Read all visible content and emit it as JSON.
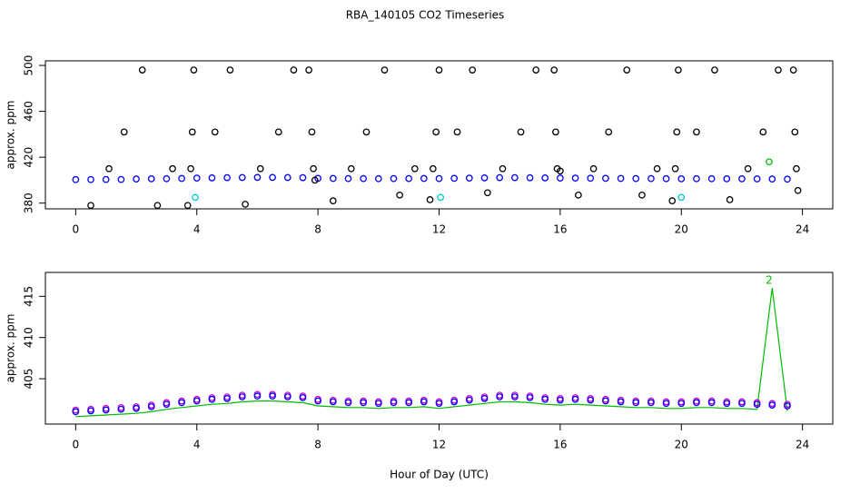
{
  "title": "RBA_140105  CO2 Timeseries",
  "chart_data": [
    {
      "type": "scatter",
      "y_label": "approx. ppm",
      "xlim": [
        -1,
        25
      ],
      "xticks": [
        0,
        4,
        8,
        12,
        16,
        20,
        24
      ],
      "ylim": [
        375,
        504
      ],
      "yticks": [
        380,
        420,
        460,
        500
      ],
      "series": [
        {
          "color": "#0000ff",
          "mode": "points",
          "x": [
            0,
            0.5,
            1,
            1.5,
            2,
            2.5,
            3,
            3.5,
            4,
            4.5,
            5,
            5.5,
            6,
            6.5,
            7,
            7.5,
            8,
            8.5,
            9,
            9.5,
            10,
            10.5,
            11,
            11.5,
            12,
            12.5,
            13,
            13.5,
            14,
            14.5,
            15,
            15.5,
            16,
            16.5,
            17,
            17.5,
            18,
            18.5,
            19,
            19.5,
            20,
            20.5,
            21,
            21.5,
            22,
            22.5,
            23,
            23.5
          ],
          "values": [
            400.5,
            400.5,
            400.6,
            400.6,
            401,
            401.2,
            401.3,
            401.5,
            401.8,
            402,
            402.2,
            402.3,
            402.4,
            402.4,
            402.3,
            402.2,
            401.6,
            401.5,
            401.4,
            401.4,
            401.3,
            401.4,
            401.4,
            401.5,
            401.4,
            401.6,
            401.8,
            402,
            402.2,
            402.2,
            402.1,
            402,
            401.8,
            401.8,
            401.7,
            401.6,
            401.5,
            401.4,
            401.4,
            401.3,
            401.2,
            401.3,
            401.3,
            401.2,
            401.2,
            401.1,
            401,
            400.9
          ]
        },
        {
          "color": "#000000",
          "mode": "points",
          "x": [
            0.5,
            1.1,
            1.6,
            2.2,
            2.7,
            3.2,
            3.7,
            3.8,
            3.85,
            3.9,
            4.6,
            5.1,
            5.6,
            6.1,
            6.7,
            7.2,
            7.7,
            7.8,
            7.85,
            7.9,
            8.5,
            9.1,
            9.6,
            10.2,
            10.7,
            11.2,
            11.7,
            11.8,
            11.9,
            12,
            12.6,
            13.1,
            13.6,
            14.1,
            14.7,
            15.2,
            15.8,
            15.85,
            15.9,
            16,
            16.6,
            17.1,
            17.6,
            18.2,
            18.7,
            19.2,
            19.7,
            19.8,
            19.85,
            19.9,
            20.5,
            21.1,
            21.6,
            22.2,
            22.7,
            23.2,
            23.7,
            23.75,
            23.8,
            23.85
          ],
          "values": [
            378,
            410,
            442,
            496,
            378,
            410,
            378,
            410,
            442,
            496,
            442,
            496,
            379,
            410,
            442,
            496,
            496,
            442,
            410,
            400,
            382,
            410,
            442,
            496,
            387,
            410,
            383,
            410,
            442,
            496,
            442,
            496,
            389,
            410,
            442,
            496,
            496,
            442,
            410,
            408,
            387,
            410,
            442,
            496,
            387,
            410,
            382,
            410,
            442,
            496,
            442,
            496,
            383,
            410,
            442,
            496,
            496,
            442,
            410,
            391
          ]
        },
        {
          "color": "#00cccc",
          "mode": "points",
          "x": [
            3.95,
            12.05,
            20
          ],
          "values": [
            385,
            385,
            385
          ]
        },
        {
          "color": "#00bb00",
          "mode": "points",
          "x": [
            22.9
          ],
          "values": [
            416
          ]
        }
      ]
    },
    {
      "type": "scatter",
      "y_label": "approx. ppm",
      "x_label": "Hour of Day (UTC)",
      "xlim": [
        -1,
        25
      ],
      "xticks": [
        0,
        4,
        8,
        12,
        16,
        20,
        24
      ],
      "ylim": [
        399.5,
        417.9
      ],
      "yticks": [
        405,
        410,
        415
      ],
      "series": [
        {
          "color": "#00bb00",
          "mode": "lines",
          "x": [
            0,
            0.5,
            1,
            1.5,
            2,
            2.5,
            3,
            3.5,
            4,
            4.5,
            5,
            5.5,
            6,
            6.5,
            7,
            7.5,
            8,
            8.5,
            9,
            9.5,
            10,
            10.5,
            11,
            11.5,
            12,
            12.5,
            13,
            13.5,
            14,
            14.5,
            15,
            15.5,
            16,
            16.5,
            17,
            17.5,
            18,
            18.5,
            19,
            19.5,
            20,
            20.5,
            21,
            21.5,
            22,
            22.5,
            23,
            23.5
          ],
          "values": [
            400.4,
            400.5,
            400.6,
            400.7,
            400.8,
            401,
            401.3,
            401.5,
            401.7,
            401.9,
            402,
            402.2,
            402.3,
            402.3,
            402.2,
            402.1,
            401.7,
            401.6,
            401.5,
            401.5,
            401.4,
            401.5,
            401.5,
            401.6,
            401.4,
            401.6,
            401.8,
            402,
            402.2,
            402.2,
            402.1,
            401.9,
            401.8,
            401.9,
            401.8,
            401.7,
            401.6,
            401.5,
            401.5,
            401.4,
            401.4,
            401.5,
            401.5,
            401.4,
            401.4,
            401.3,
            416,
            401.1
          ]
        },
        {
          "color": "#cc00cc",
          "mode": "points",
          "x": [
            0,
            0.5,
            1,
            1.5,
            2,
            2.5,
            3,
            3.5,
            4,
            4.5,
            5,
            5.5,
            6,
            6.5,
            7,
            7.5,
            8,
            8.5,
            9,
            9.5,
            10,
            10.5,
            11,
            11.5,
            12,
            12.5,
            13,
            13.5,
            14,
            14.5,
            15,
            15.5,
            16,
            16.5,
            17,
            17.5,
            18,
            18.5,
            19,
            19.5,
            20,
            20.5,
            21,
            21.5,
            22,
            22.5,
            23,
            23.5
          ],
          "values": [
            401.2,
            401.3,
            401.4,
            401.5,
            401.6,
            401.8,
            402.1,
            402.3,
            402.5,
            402.7,
            402.8,
            403,
            403.1,
            403.1,
            403,
            402.9,
            402.5,
            402.4,
            402.3,
            402.3,
            402.2,
            402.3,
            402.3,
            402.4,
            402.2,
            402.4,
            402.6,
            402.8,
            403,
            403,
            402.9,
            402.7,
            402.6,
            402.7,
            402.6,
            402.5,
            402.4,
            402.3,
            402.3,
            402.2,
            402.2,
            402.3,
            402.3,
            402.2,
            402.2,
            402.1,
            402,
            401.9
          ]
        },
        {
          "color": "#0000ff",
          "mode": "points",
          "x": [
            0,
            0.5,
            1,
            1.5,
            2,
            2.5,
            3,
            3.5,
            4,
            4.5,
            5,
            5.5,
            6,
            6.5,
            7,
            7.5,
            8,
            8.5,
            9,
            9.5,
            10,
            10.5,
            11,
            11.5,
            12,
            12.5,
            13,
            13.5,
            14,
            14.5,
            15,
            15.5,
            16,
            16.5,
            17,
            17.5,
            18,
            18.5,
            19,
            19.5,
            20,
            20.5,
            21,
            21.5,
            22,
            22.5,
            23,
            23.5
          ],
          "values": [
            401,
            401.1,
            401.2,
            401.3,
            401.4,
            401.6,
            401.9,
            402.1,
            402.3,
            402.5,
            402.6,
            402.8,
            402.9,
            402.9,
            402.8,
            402.7,
            402.3,
            402.2,
            402.1,
            402.1,
            402,
            402.1,
            402.1,
            402.2,
            402,
            402.2,
            402.4,
            402.6,
            402.8,
            402.8,
            402.7,
            402.5,
            402.4,
            402.5,
            402.4,
            402.3,
            402.2,
            402.1,
            402.1,
            402,
            402,
            402.1,
            402.1,
            402,
            402,
            401.9,
            401.8,
            401.7
          ]
        }
      ],
      "annotations": [
        {
          "text": "2",
          "x": 22.9,
          "y": 416
        }
      ]
    }
  ]
}
